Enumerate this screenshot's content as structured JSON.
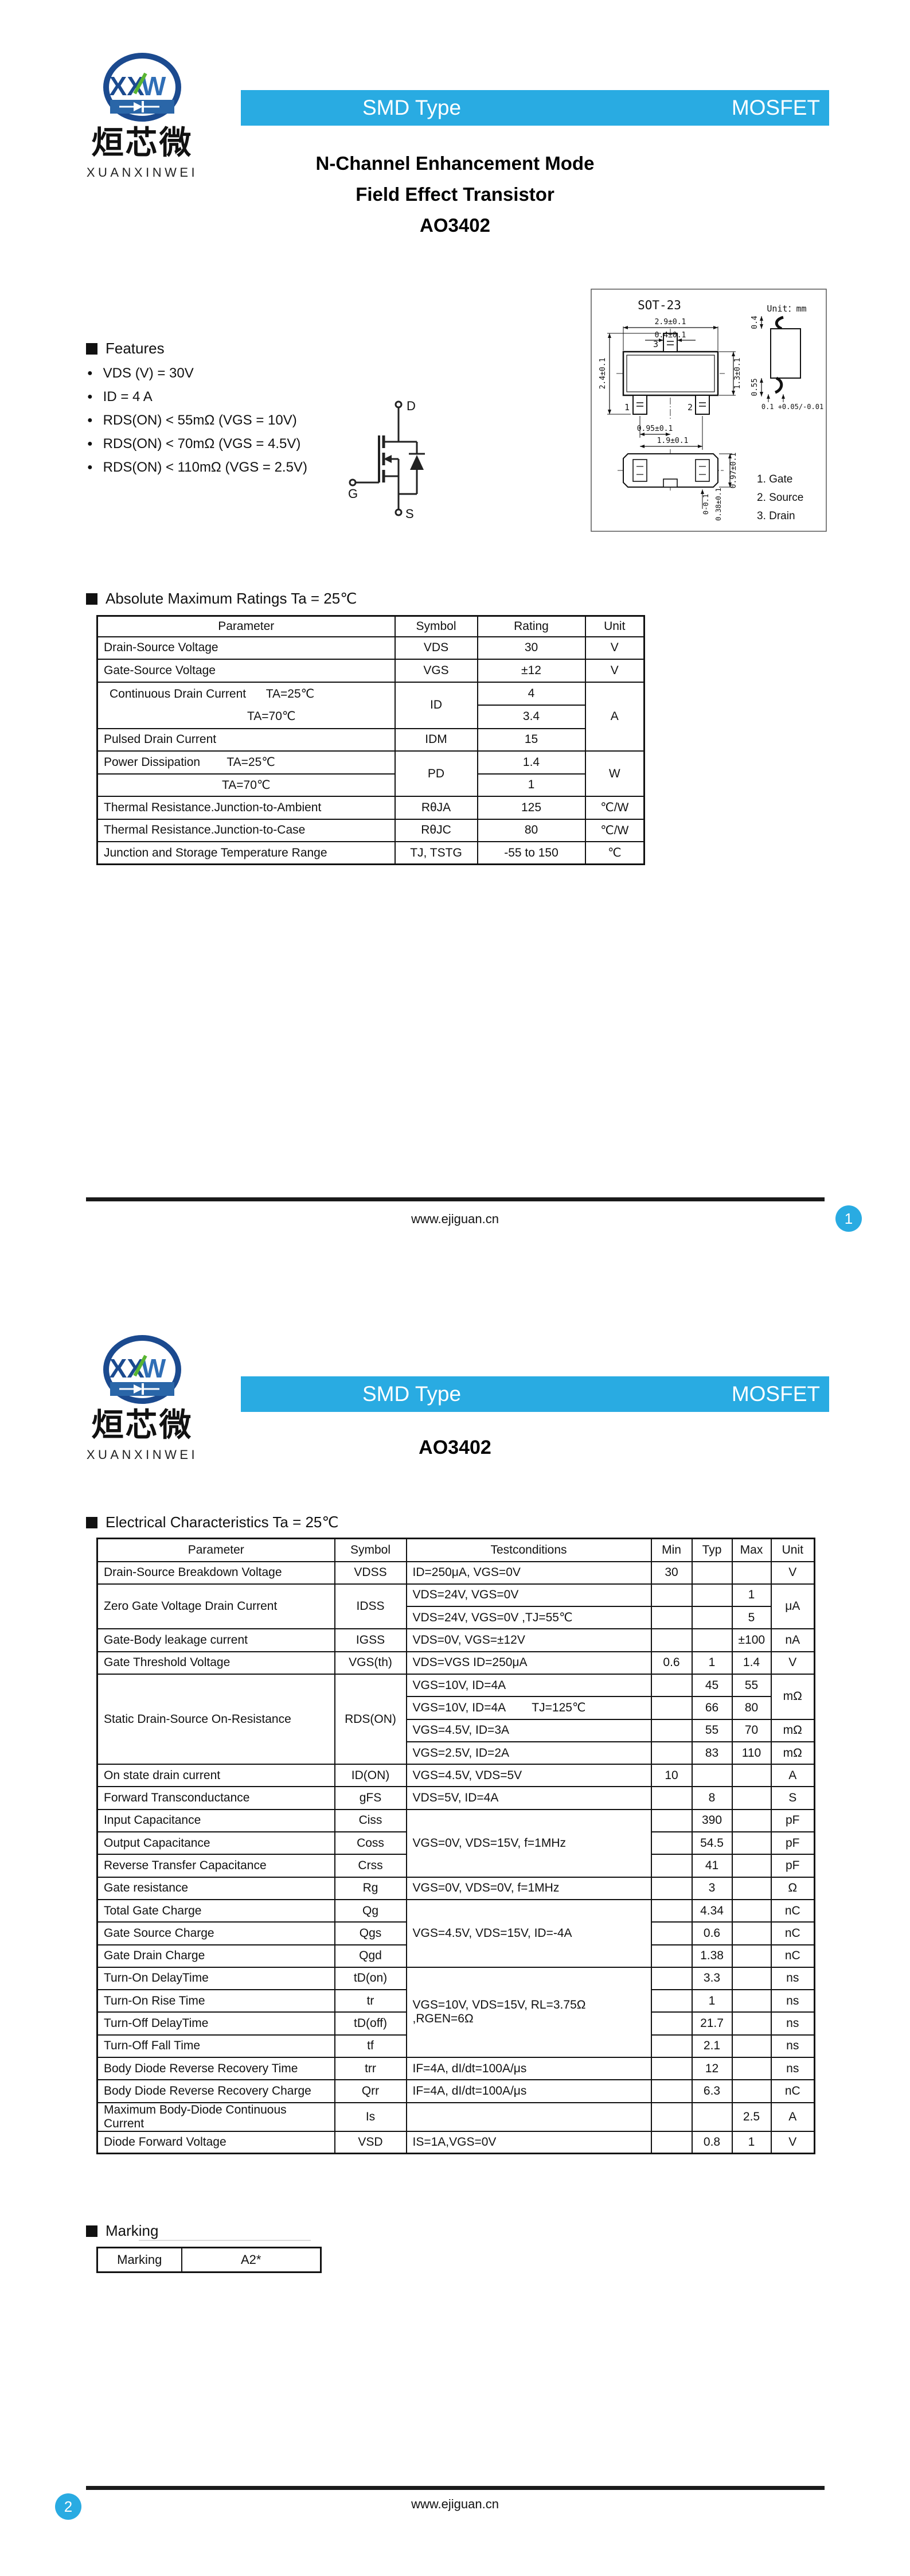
{
  "brand": {
    "monogram_xx": "XX",
    "monogram_w": "W",
    "name_cn": "烜芯微",
    "name_en": "XUANXINWEI",
    "navy": "#1b4a8f",
    "band_blue": "#2a66a8",
    "green": "#58b531"
  },
  "banner": {
    "left": "SMD Type",
    "right": "MOSFET",
    "color": "#29abe2"
  },
  "footer": {
    "url": "www.ejiguan.cn"
  },
  "page1": {
    "title1": "N-Channel Enhancement Mode",
    "title2": "Field Effect Transistor",
    "part": "AO3402",
    "page_badge": "1",
    "features": {
      "heading": "Features",
      "items": [
        "VDS (V) = 30V",
        "ID = 4 A",
        "RDS(ON) < 55mΩ (VGS = 10V)",
        "RDS(ON) < 70mΩ (VGS = 4.5V)",
        "RDS(ON) < 110mΩ (VGS = 2.5V)"
      ]
    },
    "mosfet_symbol": {
      "drain": "D",
      "gate": "G",
      "source": "S"
    },
    "package": {
      "name": "SOT-23",
      "unit_label": "Unit：mm",
      "pin_numbers": {
        "p1": "1",
        "p2": "2",
        "p3": "3"
      },
      "pin_legend": [
        "1. Gate",
        "2. Source",
        "3. Drain"
      ],
      "dims": {
        "body_width": "2.9±0.1",
        "pin_width": "0.4±0.1",
        "overall": "2.4±0.1",
        "body_height": "1.3±0.1",
        "pitch": "0.95±0.1",
        "span": "1.9±0.1",
        "lead_top": "0.4",
        "lead_bottom": "0.55",
        "lead_thk": "0.1 +0.05/-0.01",
        "side_h": "0.97±0.1",
        "standoff": "0-0.1",
        "lead_w": "0.38±0.1"
      }
    },
    "abs_max": {
      "heading": "Absolute Maximum Ratings Ta = 25℃",
      "headers": [
        "Parameter",
        "Symbol",
        "Rating",
        "Unit"
      ],
      "rows": [
        [
          {
            "t": "Drain-Source Voltage",
            "cls": "lft"
          },
          "VDS",
          "30",
          "V"
        ],
        [
          {
            "t": "Gate-Source Voltage",
            "cls": "lft"
          },
          "VGS",
          "±12",
          "V"
        ],
        [
          {
            "rs": 2,
            "cls": "twol",
            "lines": [
              "Continuous Drain Current      TA=25℃",
              "TA=70℃"
            ]
          },
          {
            "t": "ID",
            "rs": 2
          },
          "4",
          {
            "t": "A",
            "rs": 3
          }
        ],
        [
          "3.4"
        ],
        [
          {
            "t": "Pulsed Drain Current",
            "cls": "lft"
          },
          "IDM",
          "15"
        ],
        [
          {
            "t": "Power Dissipation        TA=25℃",
            "cls": "lft"
          },
          {
            "t": "PD",
            "rs": 2
          },
          "1.4",
          {
            "t": "W",
            "rs": 2
          }
        ],
        [
          {
            "t": "TA=70℃",
            "cls": "ctr2"
          },
          "1"
        ],
        [
          {
            "t": "Thermal Resistance.Junction-to-Ambient",
            "cls": "lft"
          },
          "RθJA",
          "125",
          "℃/W"
        ],
        [
          {
            "t": "Thermal Resistance.Junction-to-Case",
            "cls": "lft"
          },
          "RθJC",
          "80",
          "℃/W"
        ],
        [
          {
            "t": "Junction and Storage Temperature Range",
            "cls": "lft"
          },
          "TJ, TSTG",
          "-55 to 150",
          "℃"
        ]
      ]
    }
  },
  "page2": {
    "part": "AO3402",
    "page_badge": "2",
    "elec": {
      "heading": "Electrical Characteristics Ta = 25℃",
      "headers": [
        "Parameter",
        "Symbol",
        "Testconditions",
        "Min",
        "Typ",
        "Max",
        "Unit"
      ],
      "rows": [
        [
          {
            "t": "Drain-Source Breakdown Voltage",
            "cls": "lft"
          },
          "VDSS",
          {
            "t": "ID=250μA, VGS=0V",
            "cls": "lft"
          },
          "30",
          "",
          "",
          "V"
        ],
        [
          {
            "t": "Zero Gate Voltage Drain Current",
            "cls": "lft",
            "rs": 2
          },
          {
            "t": "IDSS",
            "rs": 2
          },
          {
            "t": "VDS=24V, VGS=0V",
            "cls": "lft"
          },
          "",
          "",
          "1",
          {
            "t": "μA",
            "rs": 2
          }
        ],
        [
          {
            "t": "VDS=24V, VGS=0V ,TJ=55℃",
            "cls": "lft"
          },
          "",
          "",
          "5"
        ],
        [
          {
            "t": "Gate-Body leakage current",
            "cls": "lft"
          },
          "IGSS",
          {
            "t": "VDS=0V, VGS=±12V",
            "cls": "lft"
          },
          "",
          "",
          "±100",
          "nA"
        ],
        [
          {
            "t": "Gate Threshold Voltage",
            "cls": "lft"
          },
          "VGS(th)",
          {
            "t": "VDS=VGS ID=250μA",
            "cls": "lft"
          },
          "0.6",
          "1",
          "1.4",
          "V"
        ],
        [
          {
            "t": "Static Drain-Source On-Resistance",
            "cls": "lft",
            "rs": 4
          },
          {
            "t": "RDS(ON)",
            "rs": 4
          },
          {
            "t": "VGS=10V, ID=4A",
            "cls": "lft"
          },
          "",
          "45",
          "55",
          {
            "t": "mΩ",
            "rs": 2
          }
        ],
        [
          {
            "t": "VGS=10V, ID=4A        TJ=125℃",
            "cls": "lft"
          },
          "",
          "66",
          "80"
        ],
        [
          {
            "t": "VGS=4.5V, ID=3A",
            "cls": "lft"
          },
          "",
          "55",
          "70",
          "mΩ"
        ],
        [
          {
            "t": "VGS=2.5V, ID=2A",
            "cls": "lft"
          },
          "",
          "83",
          "110",
          "mΩ"
        ],
        [
          {
            "t": "On state drain current",
            "cls": "lft"
          },
          "ID(ON)",
          {
            "t": "VGS=4.5V, VDS=5V",
            "cls": "lft"
          },
          "10",
          "",
          "",
          "A"
        ],
        [
          {
            "t": "Forward Transconductance",
            "cls": "lft"
          },
          "gFS",
          {
            "t": "VDS=5V, ID=4A",
            "cls": "lft"
          },
          "",
          "8",
          "",
          "S"
        ],
        [
          {
            "t": "Input Capacitance",
            "cls": "lft"
          },
          "Ciss",
          {
            "t": "VGS=0V, VDS=15V, f=1MHz",
            "cls": "lft",
            "rs": 3
          },
          "",
          "390",
          "",
          "pF"
        ],
        [
          {
            "t": "Output Capacitance",
            "cls": "lft"
          },
          "Coss",
          "",
          "54.5",
          "",
          "pF"
        ],
        [
          {
            "t": "Reverse Transfer Capacitance",
            "cls": "lft"
          },
          "Crss",
          "",
          "41",
          "",
          "pF"
        ],
        [
          {
            "t": "Gate resistance",
            "cls": "lft"
          },
          "Rg",
          {
            "t": "VGS=0V, VDS=0V, f=1MHz",
            "cls": "lft"
          },
          "",
          "3",
          "",
          "Ω"
        ],
        [
          {
            "t": "Total Gate Charge",
            "cls": "lft"
          },
          "Qg",
          {
            "t": "VGS=4.5V, VDS=15V, ID=-4A",
            "cls": "lft",
            "rs": 3
          },
          "",
          "4.34",
          "",
          "nC"
        ],
        [
          {
            "t": "Gate Source Charge",
            "cls": "lft"
          },
          "Qgs",
          "",
          "0.6",
          "",
          "nC"
        ],
        [
          {
            "t": "Gate Drain Charge",
            "cls": "lft"
          },
          "Qgd",
          "",
          "1.38",
          "",
          "nC"
        ],
        [
          {
            "t": "Turn-On DelayTime",
            "cls": "lft"
          },
          "tD(on)",
          {
            "t": "VGS=10V, VDS=15V, RL=3.75Ω ,RGEN=6Ω",
            "cls": "lft",
            "rs": 4
          },
          "",
          "3.3",
          "",
          "ns"
        ],
        [
          {
            "t": "Turn-On Rise Time",
            "cls": "lft"
          },
          "tr",
          "",
          "1",
          "",
          "ns"
        ],
        [
          {
            "t": "Turn-Off DelayTime",
            "cls": "lft"
          },
          "tD(off)",
          "",
          "21.7",
          "",
          "ns"
        ],
        [
          {
            "t": "Turn-Off Fall Time",
            "cls": "lft"
          },
          "tf",
          "",
          "2.1",
          "",
          "ns"
        ],
        [
          {
            "t": "Body Diode Reverse Recovery Time",
            "cls": "lft"
          },
          "trr",
          {
            "t": "IF=4A, dI/dt=100A/μs",
            "cls": "lft"
          },
          "",
          "12",
          "",
          "ns"
        ],
        [
          {
            "t": "Body Diode Reverse Recovery Charge",
            "cls": "lft"
          },
          "Qrr",
          {
            "t": "IF=4A, dI/dt=100A/μs",
            "cls": "lft"
          },
          "",
          "6.3",
          "",
          "nC"
        ],
        [
          {
            "t": "Maximum Body-Diode Continuous Current",
            "cls": "lft"
          },
          "Is",
          {
            "t": "",
            "cls": "lft"
          },
          "",
          "",
          "2.5",
          "A"
        ],
        [
          {
            "t": "Diode Forward Voltage",
            "cls": "lft"
          },
          "VSD",
          {
            "t": "IS=1A,VGS=0V",
            "cls": "lft"
          },
          "",
          "0.8",
          "1",
          "V"
        ]
      ]
    },
    "marking": {
      "heading": "Marking",
      "label": "Marking",
      "value": "A2*"
    }
  }
}
